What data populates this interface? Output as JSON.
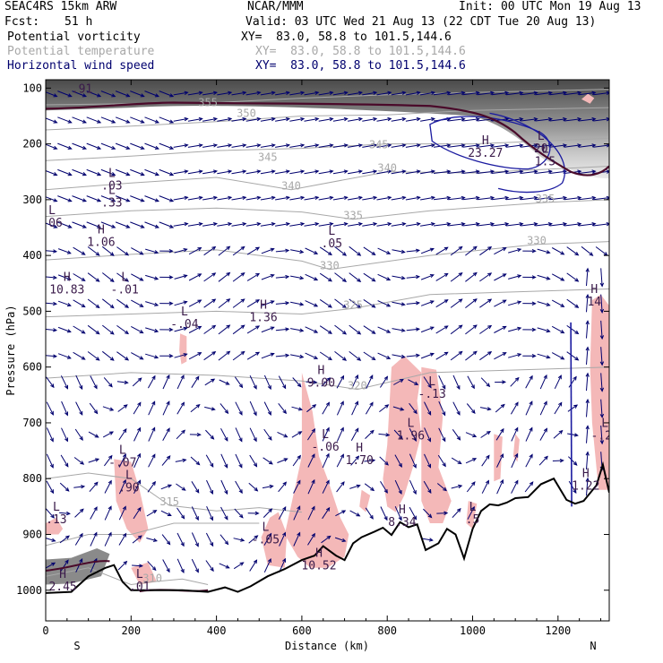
{
  "header": {
    "model": "SEAC4RS 15km ARW",
    "org": "NCAR/MMM",
    "init": "Init: 00 UTC Mon 19 Aug 13",
    "fcst_label": "Fcst:",
    "fcst_value": "51 h",
    "valid": "Valid: 03 UTC Wed 21 Aug 13 (22 CDT Tue 20 Aug 13)",
    "fields": [
      {
        "name": "Potential vorticity",
        "xy": "XY=  83.0, 58.8 to 101.5,144.6",
        "color": "#000000"
      },
      {
        "name": "Potential temperature",
        "xy": "XY=  83.0, 58.8 to 101.5,144.6",
        "color": "#a8a8a8"
      },
      {
        "name": "Horizontal wind speed",
        "xy": "XY=  83.0, 58.8 to 101.5,144.6",
        "color": "#00006e"
      }
    ]
  },
  "chart_data": {
    "type": "cross-section",
    "xlabel": "Distance (km)",
    "ylabel": "Pressure (hPa)",
    "xlim": [
      0,
      1320
    ],
    "ylim": [
      1000,
      100
    ],
    "x_ticks": [
      0,
      200,
      400,
      600,
      800,
      1000,
      1200
    ],
    "x_tick_labels": [
      "0",
      "200",
      "400",
      "600",
      "800",
      "1000",
      "1200"
    ],
    "y_ticks": [
      100,
      200,
      300,
      400,
      500,
      600,
      700,
      800,
      900,
      1000
    ],
    "y_tick_labels": [
      "100",
      "200",
      "300",
      "400",
      "500",
      "600",
      "700",
      "800",
      "900",
      "1000"
    ],
    "endpoints": {
      "left": "S",
      "right": "N"
    },
    "colors": {
      "pv_shading": "#f4b8b8",
      "theta_contour": "#a8a8a8",
      "wind_vectors": "#00006e",
      "terrain": "#000000",
      "tropopause": "#4a0a2a",
      "jet_contour": "#1a1aa0"
    },
    "theta_contours": [
      {
        "label": "310",
        "x": 250,
        "p": 985
      },
      {
        "label": "315",
        "x": 290,
        "p": 848
      },
      {
        "label": "320",
        "x": 730,
        "p": 640
      },
      {
        "label": "325",
        "x": 720,
        "p": 495
      },
      {
        "label": "330",
        "x": 665,
        "p": 425
      },
      {
        "label": "330",
        "x": 1150,
        "p": 380
      },
      {
        "label": "335",
        "x": 720,
        "p": 335
      },
      {
        "label": "335",
        "x": 1170,
        "p": 305
      },
      {
        "label": "340",
        "x": 575,
        "p": 282
      },
      {
        "label": "340",
        "x": 800,
        "p": 250
      },
      {
        "label": "345",
        "x": 520,
        "p": 230
      },
      {
        "label": "345",
        "x": 780,
        "p": 208
      },
      {
        "label": "350",
        "x": 470,
        "p": 152
      },
      {
        "label": "355",
        "x": 380,
        "p": 132
      }
    ],
    "pv_extrema": [
      {
        "type": "L",
        "value": ".91",
        "x": 85,
        "p": 108
      },
      {
        "type": "L",
        "value": ".03",
        "x": 155,
        "p": 282
      },
      {
        "type": "L",
        "value": ".33",
        "x": 155,
        "p": 312
      },
      {
        "type": "L",
        "value": ".06",
        "x": 15,
        "p": 348
      },
      {
        "type": "H",
        "value": "1.06",
        "x": 130,
        "p": 383
      },
      {
        "type": "H",
        "value": "10.83",
        "x": 50,
        "p": 468
      },
      {
        "type": "L",
        "value": "-.01",
        "x": 185,
        "p": 468
      },
      {
        "type": "H",
        "value": "1.36",
        "x": 510,
        "p": 518
      },
      {
        "type": "L",
        "value": "-.04",
        "x": 325,
        "p": 530
      },
      {
        "type": "L",
        "value": ".05",
        "x": 670,
        "p": 385
      },
      {
        "type": "H",
        "value": "9.00",
        "x": 645,
        "p": 635
      },
      {
        "type": "L",
        "value": "-.13",
        "x": 905,
        "p": 655
      },
      {
        "type": "L",
        "value": "1.96",
        "x": 855,
        "p": 730
      },
      {
        "type": "L",
        "value": "-.06",
        "x": 655,
        "p": 750
      },
      {
        "type": "H",
        "value": "1.70",
        "x": 735,
        "p": 774
      },
      {
        "type": "L",
        "value": "-.07",
        "x": 180,
        "p": 778
      },
      {
        "type": "L",
        "value": ".90",
        "x": 195,
        "p": 823
      },
      {
        "type": "L",
        "value": ".13",
        "x": 25,
        "p": 880
      },
      {
        "type": "L",
        "value": "-.05",
        "x": 515,
        "p": 916
      },
      {
        "type": "H",
        "value": "10.52",
        "x": 640,
        "p": 963
      },
      {
        "type": "H",
        "value": "8.34",
        "x": 835,
        "p": 885
      },
      {
        "type": "L",
        "value": ".5",
        "x": 1000,
        "p": 880
      },
      {
        "type": "H",
        "value": "23.27",
        "x": 1030,
        "p": 223
      },
      {
        "type": "L",
        "value": "1.5",
        "x": 1170,
        "p": 238
      },
      {
        "type": "L",
        "value": "20",
        "x": 1160,
        "p": 215
      },
      {
        "type": "H",
        "value": "14",
        "x": 1285,
        "p": 490
      },
      {
        "type": "L",
        "value": "-.21",
        "x": 1310,
        "p": 730
      },
      {
        "type": "H",
        "value": "1.22",
        "x": 1265,
        "p": 820
      },
      {
        "type": "H",
        "value": "2.45",
        "x": 40,
        "p": 1000
      },
      {
        "type": "L",
        "value": ".01",
        "x": 220,
        "p": 1000
      }
    ],
    "terrain_profile": [
      [
        0,
        1005
      ],
      [
        60,
        1003
      ],
      [
        100,
        975
      ],
      [
        140,
        960
      ],
      [
        160,
        955
      ],
      [
        180,
        985
      ],
      [
        200,
        1000
      ],
      [
        260,
        1000
      ],
      [
        320,
        1000
      ],
      [
        380,
        1003
      ],
      [
        420,
        995
      ],
      [
        450,
        1003
      ],
      [
        480,
        993
      ],
      [
        520,
        975
      ],
      [
        560,
        962
      ],
      [
        600,
        946
      ],
      [
        630,
        938
      ],
      [
        650,
        921
      ],
      [
        680,
        938
      ],
      [
        700,
        946
      ],
      [
        720,
        916
      ],
      [
        740,
        905
      ],
      [
        770,
        895
      ],
      [
        790,
        888
      ],
      [
        810,
        901
      ],
      [
        830,
        878
      ],
      [
        850,
        887
      ],
      [
        870,
        882
      ],
      [
        890,
        928
      ],
      [
        920,
        916
      ],
      [
        940,
        890
      ],
      [
        960,
        900
      ],
      [
        980,
        943
      ],
      [
        1000,
        890
      ],
      [
        1020,
        858
      ],
      [
        1040,
        846
      ],
      [
        1060,
        848
      ],
      [
        1080,
        843
      ],
      [
        1100,
        835
      ],
      [
        1130,
        833
      ],
      [
        1160,
        810
      ],
      [
        1190,
        800
      ],
      [
        1220,
        838
      ],
      [
        1240,
        845
      ],
      [
        1260,
        840
      ],
      [
        1290,
        812
      ],
      [
        1305,
        775
      ],
      [
        1320,
        825
      ]
    ]
  }
}
